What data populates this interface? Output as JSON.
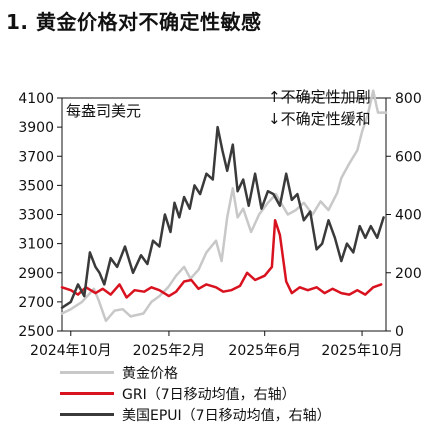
{
  "title": "1. 黄金价格对不确定性敏感",
  "left_axis_unit": "每盎司美元",
  "annotation_up": "↑不确定性加剧",
  "annotation_down": "↓不确定性缓和",
  "chart_data": {
    "type": "line",
    "left_axis": {
      "ylim": [
        2500,
        4100
      ],
      "ticks": [
        2500,
        2700,
        2900,
        3100,
        3300,
        3500,
        3700,
        3900,
        4100
      ]
    },
    "right_axis": {
      "ylim": [
        0,
        800
      ],
      "ticks": [
        0,
        200,
        400,
        600,
        800
      ]
    },
    "x_axis": {
      "range": [
        "2024-09-20",
        "2025-10-31"
      ],
      "tick_labels": [
        "2024年10月",
        "2025年2月",
        "2025年6月",
        "2025年10月"
      ],
      "tick_dates": [
        "2024-10-01",
        "2025-02-01",
        "2025-06-01",
        "2025-10-01"
      ]
    },
    "colors": {
      "gold": "#c8c8c8",
      "gri": "#d9121f",
      "epui": "#3a3a3a"
    },
    "series": [
      {
        "name": "黄金价格",
        "axis": "left",
        "dates": [
          "2024-09-20",
          "2024-10-01",
          "2024-10-15",
          "2024-10-30",
          "2024-11-05",
          "2024-11-14",
          "2024-11-25",
          "2024-12-05",
          "2024-12-15",
          "2024-12-31",
          "2025-01-10",
          "2025-01-20",
          "2025-01-31",
          "2025-02-10",
          "2025-02-20",
          "2025-02-28",
          "2025-03-10",
          "2025-03-20",
          "2025-04-01",
          "2025-04-08",
          "2025-04-15",
          "2025-04-22",
          "2025-04-28",
          "2025-05-05",
          "2025-05-15",
          "2025-05-25",
          "2025-06-05",
          "2025-06-15",
          "2025-06-30",
          "2025-07-10",
          "2025-07-20",
          "2025-07-31",
          "2025-08-10",
          "2025-08-20",
          "2025-08-31",
          "2025-09-05",
          "2025-09-15",
          "2025-09-25",
          "2025-10-01",
          "2025-10-08",
          "2025-10-15",
          "2025-10-21",
          "2025-10-31"
        ],
        "values": [
          2620,
          2650,
          2700,
          2790,
          2710,
          2570,
          2640,
          2650,
          2600,
          2620,
          2700,
          2740,
          2800,
          2880,
          2940,
          2860,
          2920,
          3040,
          3120,
          2980,
          3280,
          3480,
          3280,
          3340,
          3180,
          3300,
          3380,
          3440,
          3300,
          3330,
          3380,
          3300,
          3390,
          3330,
          3450,
          3550,
          3650,
          3740,
          3870,
          3980,
          4150,
          4000,
          4000
        ]
      },
      {
        "name": "GRI（7日移动均值，右轴）",
        "axis": "right",
        "dates": [
          "2024-09-20",
          "2024-10-01",
          "2024-10-10",
          "2024-10-20",
          "2024-11-01",
          "2024-11-10",
          "2024-11-20",
          "2024-12-01",
          "2024-12-10",
          "2024-12-20",
          "2025-01-01",
          "2025-01-10",
          "2025-01-20",
          "2025-02-01",
          "2025-02-10",
          "2025-02-20",
          "2025-03-01",
          "2025-03-10",
          "2025-03-20",
          "2025-04-01",
          "2025-04-10",
          "2025-04-20",
          "2025-05-01",
          "2025-05-10",
          "2025-05-20",
          "2025-06-01",
          "2025-06-10",
          "2025-06-14",
          "2025-06-20",
          "2025-06-28",
          "2025-07-05",
          "2025-07-15",
          "2025-07-25",
          "2025-08-05",
          "2025-08-15",
          "2025-08-25",
          "2025-09-05",
          "2025-09-15",
          "2025-09-25",
          "2025-10-05",
          "2025-10-15",
          "2025-10-25"
        ],
        "values": [
          150,
          140,
          125,
          150,
          130,
          145,
          125,
          160,
          115,
          140,
          135,
          150,
          140,
          120,
          135,
          170,
          175,
          145,
          160,
          150,
          135,
          140,
          155,
          200,
          175,
          190,
          220,
          380,
          330,
          170,
          130,
          150,
          140,
          150,
          130,
          145,
          130,
          125,
          140,
          125,
          150,
          160
        ]
      },
      {
        "name": "美国EPUI（7日移动均值，右轴）",
        "axis": "right",
        "dates": [
          "2024-09-20",
          "2024-10-01",
          "2024-10-10",
          "2024-10-18",
          "2024-10-25",
          "2024-11-01",
          "2024-11-06",
          "2024-11-12",
          "2024-11-20",
          "2024-11-28",
          "2024-12-08",
          "2024-12-18",
          "2024-12-28",
          "2025-01-05",
          "2025-01-12",
          "2025-01-20",
          "2025-01-27",
          "2025-02-03",
          "2025-02-08",
          "2025-02-14",
          "2025-02-20",
          "2025-02-27",
          "2025-03-05",
          "2025-03-12",
          "2025-03-20",
          "2025-03-28",
          "2025-04-03",
          "2025-04-09",
          "2025-04-15",
          "2025-04-22",
          "2025-04-28",
          "2025-05-05",
          "2025-05-12",
          "2025-05-20",
          "2025-05-28",
          "2025-06-05",
          "2025-06-12",
          "2025-06-20",
          "2025-06-28",
          "2025-07-05",
          "2025-07-12",
          "2025-07-20",
          "2025-07-28",
          "2025-08-05",
          "2025-08-12",
          "2025-08-20",
          "2025-08-28",
          "2025-09-05",
          "2025-09-12",
          "2025-09-20",
          "2025-09-28",
          "2025-10-05",
          "2025-10-12",
          "2025-10-20",
          "2025-10-28"
        ],
        "values": [
          80,
          100,
          160,
          120,
          270,
          220,
          200,
          160,
          250,
          220,
          290,
          200,
          260,
          230,
          310,
          290,
          400,
          340,
          440,
          390,
          460,
          420,
          500,
          470,
          540,
          520,
          700,
          620,
          550,
          640,
          480,
          520,
          430,
          540,
          420,
          480,
          470,
          430,
          540,
          450,
          470,
          380,
          410,
          280,
          300,
          380,
          320,
          240,
          300,
          270,
          360,
          320,
          360,
          320,
          390
        ]
      }
    ]
  }
}
